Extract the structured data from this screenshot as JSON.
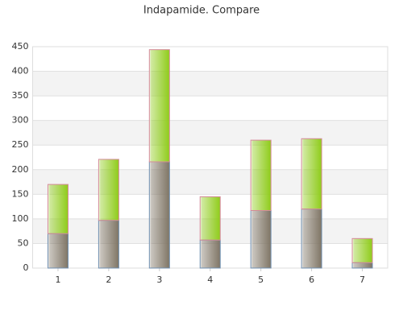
{
  "chart_data": {
    "type": "stacked_bar",
    "title": "Indapamide. Compare",
    "categories": [
      "1",
      "2",
      "3",
      "4",
      "5",
      "6",
      "7"
    ],
    "series": [
      {
        "color": "#7f7565",
        "values": [
          70,
          97,
          216,
          57,
          117,
          120,
          11
        ]
      },
      {
        "color": "#8fcc1a",
        "values": [
          100,
          124,
          228,
          88,
          143,
          143,
          49
        ]
      }
    ],
    "ylim": [
      0,
      450
    ],
    "yticks": [
      0,
      50,
      100,
      150,
      200,
      250,
      300,
      350,
      400,
      450
    ],
    "grid": true
  }
}
